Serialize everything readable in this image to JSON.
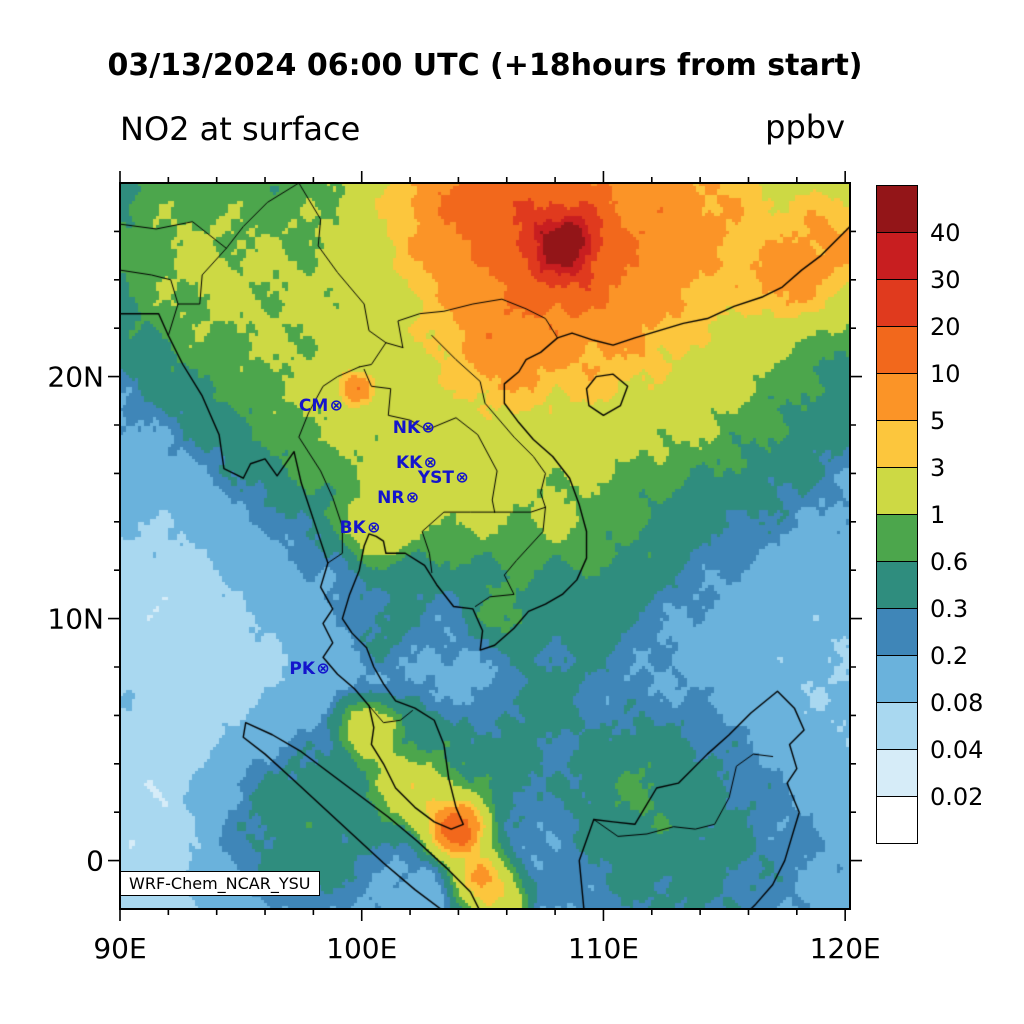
{
  "title": "03/13/2024 06:00 UTC (+18hours from start)",
  "variable_label": "NO2 at surface",
  "units_label": "ppbv",
  "watermark": "WRF-Chem_NCAR_YSU",
  "axes": {
    "x_ticks": [
      {
        "lon": 90,
        "label": "90E"
      },
      {
        "lon": 100,
        "label": "100E"
      },
      {
        "lon": 110,
        "label": "110E"
      },
      {
        "lon": 120,
        "label": "120E"
      }
    ],
    "y_ticks": [
      {
        "lat": 20,
        "label": "20N"
      },
      {
        "lat": 10,
        "label": "10N"
      },
      {
        "lat": 0,
        "label": "0"
      }
    ],
    "minor_tick_interval_deg": 2
  },
  "stations": [
    {
      "id": "CM",
      "label": "CM",
      "lon": 98.95,
      "lat": 18.8
    },
    {
      "id": "NK",
      "label": "NK",
      "lon": 102.75,
      "lat": 17.87
    },
    {
      "id": "KK",
      "label": "KK",
      "lon": 102.84,
      "lat": 16.45
    },
    {
      "id": "YST",
      "label": "YST",
      "lon": 104.15,
      "lat": 15.8
    },
    {
      "id": "NR",
      "label": "NR",
      "lon": 102.1,
      "lat": 14.97
    },
    {
      "id": "BK",
      "label": "BK",
      "lon": 100.5,
      "lat": 13.75
    },
    {
      "id": "PK",
      "label": "PK",
      "lon": 98.4,
      "lat": 7.9
    }
  ],
  "colorbar": {
    "tick_labels_top_down": [
      "40",
      "30",
      "20",
      "10",
      "5",
      "3",
      "1",
      "0.6",
      "0.3",
      "0.2",
      "0.08",
      "0.04",
      "0.02"
    ],
    "levels_ascending": [
      0.02,
      0.04,
      0.08,
      0.2,
      0.3,
      0.6,
      1,
      3,
      5,
      10,
      20,
      30,
      40
    ],
    "colors_ascending": [
      "#ffffff",
      "#d6ecf8",
      "#a9d8f0",
      "#6ab2dc",
      "#3f86b8",
      "#2f8d7e",
      "#4ca64c",
      "#cdd944",
      "#fcc63d",
      "#fb9427",
      "#f2681c",
      "#e03a1e",
      "#c81e20",
      "#931518"
    ]
  },
  "chart_data": {
    "type": "filled_contour_map",
    "title": "03/13/2024 06:00 UTC (+18hours from start)",
    "variable": "NO2 at surface",
    "units": "ppbv",
    "lon_range": [
      90,
      120.2
    ],
    "lat_range": [
      -2,
      28
    ],
    "contour_levels": [
      0.02,
      0.04,
      0.08,
      0.2,
      0.3,
      0.6,
      1,
      3,
      5,
      10,
      20,
      30,
      40
    ],
    "station_labels": [
      "CM",
      "NK",
      "KK",
      "YST",
      "NR",
      "BK",
      "PK"
    ],
    "model_tag": "WRF-Chem_NCAR_YSU"
  },
  "map_render": {
    "extent": {
      "lon": [
        90,
        120.2
      ],
      "lat": [
        -2,
        28
      ]
    },
    "base_value": 0.1,
    "blobs": [
      [
        93.5,
        1.5,
        3.2,
        -0.093
      ],
      [
        91.5,
        11,
        3,
        -0.05
      ],
      [
        116,
        13,
        4,
        -0.045
      ],
      [
        118.5,
        5.5,
        2.5,
        -0.05
      ],
      [
        110.5,
        16,
        2.5,
        -0.035
      ],
      [
        95.5,
        6.5,
        2,
        -0.04
      ],
      [
        96,
        23,
        3.5,
        0.5
      ],
      [
        92,
        27,
        2.5,
        0.45
      ],
      [
        98,
        18.5,
        2.2,
        0.4
      ],
      [
        101.5,
        15.8,
        2.5,
        0.4
      ],
      [
        103,
        16,
        1.5,
        0.8
      ],
      [
        104.5,
        20.5,
        2.5,
        0.55
      ],
      [
        105.6,
        14.2,
        1.8,
        0.35
      ],
      [
        93,
        23.5,
        2.5,
        0.4
      ],
      [
        113,
        1,
        4,
        0.28
      ],
      [
        97.5,
        1.5,
        2.5,
        0.4
      ],
      [
        102.5,
        4.5,
        1.5,
        0.35
      ],
      [
        109,
        25,
        6,
        2.5
      ],
      [
        107.5,
        24.5,
        3,
        6
      ],
      [
        108.3,
        25.3,
        1.2,
        28
      ],
      [
        108.5,
        25.6,
        0.55,
        25
      ],
      [
        104.5,
        27.5,
        2,
        7
      ],
      [
        108,
        27.8,
        2,
        5
      ],
      [
        113.5,
        26.5,
        2.5,
        4
      ],
      [
        117.5,
        23.8,
        1,
        4
      ],
      [
        119.5,
        25.5,
        1.5,
        5
      ],
      [
        111,
        22,
        2,
        1.2
      ],
      [
        105.8,
        21,
        1.2,
        3
      ],
      [
        99.7,
        19.5,
        0.45,
        8
      ],
      [
        100.7,
        13.8,
        0.8,
        1.6
      ],
      [
        104,
        1.3,
        0.6,
        15
      ],
      [
        103,
        2.2,
        0.8,
        2
      ],
      [
        101.6,
        3.1,
        0.8,
        1.5
      ],
      [
        100.3,
        5.4,
        0.7,
        2
      ],
      [
        105.5,
        -1.5,
        0.7,
        3
      ],
      [
        104.8,
        -0.5,
        0.6,
        4
      ],
      [
        105.5,
        3.5,
        1.2,
        0.3
      ],
      [
        107.5,
        6.5,
        1.2,
        0.25
      ],
      [
        109.5,
        9.5,
        1.2,
        0.22
      ],
      [
        111.5,
        12.5,
        1.2,
        0.2
      ],
      [
        101,
        9.5,
        1.2,
        0.18
      ],
      [
        111.5,
        3,
        1.5,
        0.3
      ],
      [
        106,
        10.2,
        1,
        0.5
      ],
      [
        108.5,
        13.5,
        1.2,
        0.4
      ]
    ],
    "coastlines": [
      [
        [
          90,
          22.6
        ],
        [
          91.6,
          22.6
        ],
        [
          92.0,
          21.7
        ],
        [
          92.6,
          20.5
        ],
        [
          93.4,
          19.2
        ],
        [
          94.1,
          17.6
        ],
        [
          94.3,
          16.2
        ],
        [
          95.1,
          15.8
        ],
        [
          95.4,
          16.4
        ],
        [
          96.0,
          16.6
        ],
        [
          96.5,
          15.9
        ],
        [
          97.2,
          16.9
        ],
        [
          97.5,
          15.6
        ],
        [
          98.1,
          13.8
        ],
        [
          98.6,
          12.3
        ],
        [
          98.3,
          11.3
        ],
        [
          98.8,
          10.4
        ],
        [
          98.4,
          9.8
        ],
        [
          98.8,
          9.0
        ],
        [
          98.4,
          8.4
        ],
        [
          99.0,
          7.7
        ],
        [
          99.7,
          7.1
        ],
        [
          100.3,
          6.4
        ],
        [
          100.5,
          5.5
        ],
        [
          100.4,
          4.8
        ],
        [
          100.9,
          4.0
        ],
        [
          101.4,
          3.0
        ],
        [
          102.2,
          2.2
        ],
        [
          103.0,
          1.6
        ],
        [
          103.7,
          1.3
        ],
        [
          104.2,
          1.5
        ],
        [
          103.9,
          2.2
        ],
        [
          103.6,
          3.4
        ],
        [
          103.4,
          4.8
        ],
        [
          103.0,
          5.8
        ],
        [
          102.2,
          6.3
        ],
        [
          101.4,
          6.6
        ],
        [
          100.9,
          7.3
        ],
        [
          100.5,
          8.0
        ],
        [
          100.2,
          8.8
        ],
        [
          99.6,
          9.4
        ],
        [
          99.2,
          10.0
        ],
        [
          99.5,
          11.0
        ],
        [
          99.9,
          12.0
        ],
        [
          100.1,
          13.0
        ],
        [
          100.3,
          13.5
        ],
        [
          100.6,
          13.4
        ],
        [
          100.9,
          13.2
        ],
        [
          101.0,
          12.7
        ],
        [
          101.8,
          12.7
        ],
        [
          102.6,
          12.2
        ],
        [
          103.1,
          11.4
        ],
        [
          103.8,
          10.5
        ],
        [
          104.6,
          10.4
        ],
        [
          105.0,
          9.5
        ],
        [
          104.9,
          8.7
        ],
        [
          105.5,
          8.9
        ],
        [
          106.3,
          9.6
        ],
        [
          106.9,
          10.3
        ],
        [
          107.6,
          10.6
        ],
        [
          108.3,
          11.0
        ],
        [
          108.9,
          11.6
        ],
        [
          109.3,
          12.5
        ],
        [
          109.3,
          13.6
        ],
        [
          109.0,
          14.7
        ],
        [
          108.6,
          15.8
        ],
        [
          107.9,
          16.7
        ],
        [
          107.1,
          17.4
        ],
        [
          106.5,
          18.1
        ],
        [
          105.9,
          18.9
        ],
        [
          105.9,
          19.7
        ],
        [
          106.5,
          20.2
        ],
        [
          106.8,
          20.7
        ],
        [
          107.4,
          21.0
        ],
        [
          108.1,
          21.6
        ],
        [
          108.7,
          21.8
        ],
        [
          109.6,
          21.5
        ],
        [
          110.4,
          21.3
        ],
        [
          111.3,
          21.6
        ],
        [
          112.3,
          21.9
        ],
        [
          113.3,
          22.2
        ],
        [
          114.3,
          22.4
        ],
        [
          115.4,
          22.9
        ],
        [
          116.6,
          23.3
        ],
        [
          117.4,
          23.7
        ],
        [
          118.2,
          24.4
        ],
        [
          119.0,
          25.0
        ],
        [
          119.9,
          25.9
        ],
        [
          120.3,
          26.3
        ]
      ],
      [
        [
          95.2,
          5.7
        ],
        [
          96.3,
          5.2
        ],
        [
          97.5,
          4.5
        ],
        [
          98.7,
          3.6
        ],
        [
          99.9,
          2.7
        ],
        [
          101.1,
          1.8
        ],
        [
          102.3,
          0.8
        ],
        [
          103.5,
          -0.3
        ],
        [
          104.5,
          -1.3
        ],
        [
          104.9,
          -2.1
        ],
        [
          103.4,
          -2.1
        ],
        [
          102.2,
          -1.2
        ],
        [
          100.9,
          -0.1
        ],
        [
          99.6,
          1.1
        ],
        [
          98.3,
          2.3
        ],
        [
          97.1,
          3.4
        ],
        [
          96.0,
          4.4
        ],
        [
          95.1,
          5.1
        ],
        [
          95.2,
          5.7
        ]
      ],
      [
        [
          109.2,
          -2.1
        ],
        [
          109.0,
          0.0
        ],
        [
          109.6,
          1.7
        ],
        [
          110.4,
          1.6
        ],
        [
          111.3,
          1.5
        ],
        [
          112.2,
          3.0
        ],
        [
          113.1,
          3.2
        ],
        [
          114.3,
          4.4
        ],
        [
          115.2,
          5.2
        ],
        [
          116.1,
          6.1
        ],
        [
          117.2,
          7.0
        ],
        [
          117.9,
          6.3
        ],
        [
          118.3,
          5.4
        ],
        [
          117.7,
          4.8
        ],
        [
          118.0,
          3.8
        ],
        [
          117.6,
          3.2
        ],
        [
          118.1,
          2.0
        ],
        [
          117.8,
          1.0
        ],
        [
          117.5,
          0.0
        ],
        [
          117.0,
          -1.0
        ],
        [
          116.3,
          -1.8
        ],
        [
          116.0,
          -2.1
        ]
      ],
      [
        [
          109.7,
          20.0
        ],
        [
          110.4,
          20.1
        ],
        [
          111.0,
          19.6
        ],
        [
          110.7,
          18.8
        ],
        [
          110.0,
          18.4
        ],
        [
          109.4,
          18.8
        ],
        [
          109.3,
          19.5
        ],
        [
          109.7,
          20.0
        ]
      ]
    ],
    "borders": [
      [
        [
          92.0,
          21.7
        ],
        [
          92.4,
          23.0
        ],
        [
          93.3,
          23.0
        ],
        [
          93.4,
          24.2
        ],
        [
          94.4,
          25.3
        ],
        [
          95.1,
          26.2
        ],
        [
          96.1,
          27.2
        ],
        [
          97.4,
          28.0
        ]
      ],
      [
        [
          97.4,
          28.0
        ],
        [
          98.3,
          26.5
        ],
        [
          98.2,
          25.4
        ],
        [
          99.0,
          24.3
        ],
        [
          100.1,
          23.0
        ],
        [
          100.3,
          21.9
        ],
        [
          101.0,
          21.4
        ],
        [
          101.7,
          21.2
        ]
      ],
      [
        [
          101.7,
          21.2
        ],
        [
          101.5,
          22.3
        ],
        [
          102.4,
          22.6
        ],
        [
          103.4,
          22.7
        ],
        [
          104.6,
          23.0
        ],
        [
          105.8,
          23.2
        ],
        [
          106.8,
          22.8
        ],
        [
          107.6,
          22.4
        ],
        [
          108.1,
          21.6
        ]
      ],
      [
        [
          99.9,
          20.4
        ],
        [
          99.0,
          20.0
        ],
        [
          98.4,
          19.6
        ],
        [
          97.8,
          18.5
        ],
        [
          97.4,
          17.5
        ],
        [
          98.3,
          16.1
        ],
        [
          98.8,
          15.0
        ],
        [
          99.2,
          13.8
        ],
        [
          99.2,
          12.7
        ],
        [
          98.6,
          12.3
        ]
      ],
      [
        [
          99.9,
          20.4
        ],
        [
          100.4,
          20.5
        ],
        [
          101.0,
          21.4
        ]
      ],
      [
        [
          100.1,
          20.3
        ],
        [
          100.4,
          19.6
        ],
        [
          101.2,
          19.5
        ],
        [
          101.1,
          18.4
        ],
        [
          102.0,
          18.2
        ],
        [
          102.7,
          17.8
        ],
        [
          103.9,
          18.3
        ],
        [
          104.8,
          17.6
        ],
        [
          105.6,
          16.1
        ],
        [
          105.4,
          14.9
        ],
        [
          105.5,
          14.4
        ]
      ],
      [
        [
          105.5,
          14.4
        ],
        [
          104.5,
          14.4
        ],
        [
          103.4,
          14.4
        ],
        [
          102.5,
          13.6
        ],
        [
          102.8,
          12.7
        ],
        [
          102.9,
          11.9
        ]
      ],
      [
        [
          102.9,
          21.7
        ],
        [
          103.9,
          20.7
        ],
        [
          104.9,
          19.8
        ],
        [
          105.1,
          18.9
        ],
        [
          106.3,
          17.5
        ],
        [
          107.1,
          16.7
        ],
        [
          107.6,
          16.0
        ],
        [
          107.4,
          15.2
        ],
        [
          107.6,
          14.6
        ]
      ],
      [
        [
          107.6,
          14.6
        ],
        [
          107.5,
          13.6
        ],
        [
          106.4,
          12.4
        ],
        [
          105.9,
          11.8
        ],
        [
          106.3,
          11.0
        ],
        [
          105.3,
          10.9
        ],
        [
          104.7,
          10.5
        ]
      ],
      [
        [
          105.5,
          14.4
        ],
        [
          106.2,
          14.4
        ],
        [
          107.0,
          14.4
        ],
        [
          107.6,
          14.6
        ]
      ],
      [
        [
          100.3,
          6.4
        ],
        [
          100.9,
          5.7
        ],
        [
          101.6,
          5.8
        ],
        [
          102.1,
          6.2
        ]
      ],
      [
        [
          109.6,
          1.7
        ],
        [
          110.6,
          1.0
        ],
        [
          111.8,
          1.1
        ],
        [
          112.9,
          1.4
        ],
        [
          113.8,
          1.3
        ],
        [
          114.6,
          1.5
        ],
        [
          115.2,
          2.6
        ],
        [
          115.5,
          3.9
        ],
        [
          116.2,
          4.4
        ],
        [
          117.0,
          4.3
        ]
      ],
      [
        [
          90,
          24.4
        ],
        [
          91.3,
          24.2
        ],
        [
          92.1,
          24.0
        ],
        [
          92.4,
          23.0
        ]
      ],
      [
        [
          90,
          26.3
        ],
        [
          91.5,
          26.1
        ],
        [
          93.0,
          26.4
        ],
        [
          94.4,
          25.3
        ]
      ]
    ]
  }
}
